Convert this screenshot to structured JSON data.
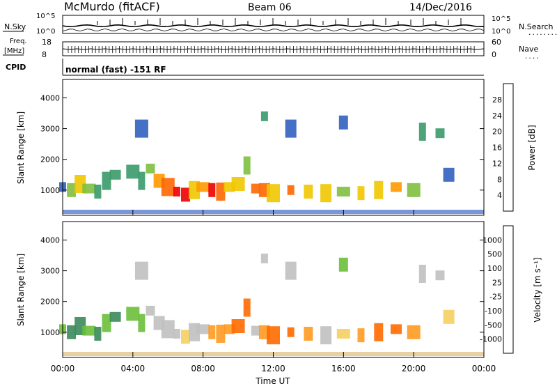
{
  "header": {
    "title": "McMurdo (fitACF)",
    "beam": "Beam 06",
    "date": "14/Dec/2016"
  },
  "top_panels": {
    "nsky_label": "N.Sky",
    "nsearch_label": "N.Search",
    "nsearch_dots": "........",
    "noise_ticks": [
      "10^5",
      "10^0"
    ],
    "freq_label_1": "Freq.",
    "freq_label_2": "[MHz]",
    "freq_ticks": [
      "18",
      "8"
    ],
    "nave_label": "Nave",
    "nave_dots": "....",
    "nave_ticks": [
      "60",
      "0"
    ],
    "cpid_label": "CPID",
    "cpid_value": "normal (fast) -151 RF"
  },
  "chart_data": [
    {
      "type": "heatmap",
      "name": "power",
      "ylabel": "Slant Range [km]",
      "xlabel": "",
      "ylim": [
        180,
        4600
      ],
      "yticks": [
        "1000",
        "2000",
        "3000",
        "4000"
      ],
      "colorbar_label": "Power [dB]",
      "colorbar_ticks": [
        "28",
        "24",
        "20",
        "16",
        "12",
        "8",
        "4"
      ],
      "colorbar_colors": [
        "#ee0000",
        "#ff6600",
        "#ff9900",
        "#f0c800",
        "#7fbf3f",
        "#3a9a6a",
        "#3060c0",
        "#0a1cff"
      ],
      "cells": [
        [
          0.0,
          1100,
          0.2
        ],
        [
          0.5,
          1000,
          0.45
        ],
        [
          1.0,
          1200,
          0.5
        ],
        [
          1.5,
          1050,
          0.4
        ],
        [
          2.0,
          950,
          0.3
        ],
        [
          2.5,
          1300,
          0.25
        ],
        [
          3.0,
          1500,
          0.3
        ],
        [
          4.0,
          1600,
          0.35
        ],
        [
          4.5,
          1300,
          0.3
        ],
        [
          5.0,
          1700,
          0.4
        ],
        [
          5.5,
          1300,
          0.7
        ],
        [
          6.0,
          1100,
          0.85
        ],
        [
          6.5,
          950,
          0.9
        ],
        [
          7.0,
          850,
          0.95
        ],
        [
          7.5,
          1000,
          0.6
        ],
        [
          8.0,
          1100,
          0.7
        ],
        [
          8.5,
          1000,
          0.9
        ],
        [
          9.0,
          950,
          0.85
        ],
        [
          9.5,
          1100,
          0.6
        ],
        [
          10.0,
          1200,
          0.5
        ],
        [
          10.5,
          1800,
          0.4
        ],
        [
          11.0,
          1050,
          0.85
        ],
        [
          11.5,
          1000,
          0.8
        ],
        [
          12.0,
          900,
          0.6
        ],
        [
          13.0,
          1000,
          0.8
        ],
        [
          14.0,
          950,
          0.6
        ],
        [
          15.0,
          900,
          0.5
        ],
        [
          16.0,
          950,
          0.4
        ],
        [
          17.0,
          900,
          0.5
        ],
        [
          18.0,
          1000,
          0.55
        ],
        [
          19.0,
          1100,
          0.7
        ],
        [
          20.0,
          1000,
          0.4
        ],
        [
          20.5,
          2900,
          0.3
        ],
        [
          21.5,
          2850,
          0.3
        ],
        [
          22.0,
          1500,
          0.15
        ],
        [
          4.5,
          3000,
          0.2
        ],
        [
          11.5,
          3400,
          0.25
        ],
        [
          16.0,
          3200,
          0.2
        ],
        [
          13.0,
          3000,
          0.15
        ]
      ]
    },
    {
      "type": "heatmap",
      "name": "velocity",
      "ylabel": "Slant Range [km]",
      "xlabel": "Time UT",
      "ylim": [
        180,
        4600
      ],
      "yticks": [
        "1000",
        "2000",
        "3000",
        "4000"
      ],
      "xticks": [
        "00:00",
        "04:00",
        "08:00",
        "12:00",
        "16:00",
        "20:00",
        "00:00"
      ],
      "xlim": [
        0,
        24
      ],
      "colorbar_label": "Velocity [m s⁻¹]",
      "colorbar_ticks": [
        "1000",
        "500",
        "100",
        "25",
        "-25",
        "-100",
        "-500",
        "-1000"
      ],
      "colorbar_colors": [
        "#1a3ec8",
        "#2a6a9a",
        "#3a8a5a",
        "#6abf3a",
        "#c0c0c0",
        "#f5d060",
        "#ff9a20",
        "#ff6a00",
        "#ee1010"
      ],
      "cells": [
        [
          0.0,
          1100,
          0.35
        ],
        [
          0.5,
          1000,
          0.3
        ],
        [
          1.0,
          1200,
          0.3
        ],
        [
          1.5,
          1050,
          0.35
        ],
        [
          2.0,
          950,
          0.3
        ],
        [
          2.5,
          1300,
          0.35
        ],
        [
          3.0,
          1500,
          0.3
        ],
        [
          4.0,
          1600,
          0.35
        ],
        [
          4.5,
          1300,
          0.4
        ],
        [
          5.0,
          1700,
          0.45
        ],
        [
          5.5,
          1300,
          0.55
        ],
        [
          6.0,
          1100,
          0.5
        ],
        [
          6.5,
          950,
          0.55
        ],
        [
          7.0,
          850,
          0.6
        ],
        [
          7.5,
          1000,
          0.55
        ],
        [
          8.0,
          1100,
          0.5
        ],
        [
          8.5,
          1000,
          0.7
        ],
        [
          9.0,
          950,
          0.75
        ],
        [
          9.5,
          1100,
          0.7
        ],
        [
          10.0,
          1200,
          0.8
        ],
        [
          10.5,
          1800,
          0.8
        ],
        [
          11.0,
          1050,
          0.5
        ],
        [
          11.5,
          1000,
          0.7
        ],
        [
          12.0,
          900,
          0.8
        ],
        [
          13.0,
          1000,
          0.8
        ],
        [
          14.0,
          950,
          0.75
        ],
        [
          15.0,
          900,
          0.55
        ],
        [
          16.0,
          950,
          0.6
        ],
        [
          17.0,
          900,
          0.75
        ],
        [
          18.0,
          1000,
          0.8
        ],
        [
          19.0,
          1100,
          0.85
        ],
        [
          20.0,
          1000,
          0.7
        ],
        [
          20.5,
          2900,
          0.5
        ],
        [
          21.5,
          2850,
          0.5
        ],
        [
          22.0,
          1500,
          0.6
        ],
        [
          4.5,
          3000,
          0.5
        ],
        [
          11.5,
          3400,
          0.55
        ],
        [
          16.0,
          3200,
          0.4
        ],
        [
          13.0,
          3000,
          0.5
        ]
      ]
    }
  ]
}
